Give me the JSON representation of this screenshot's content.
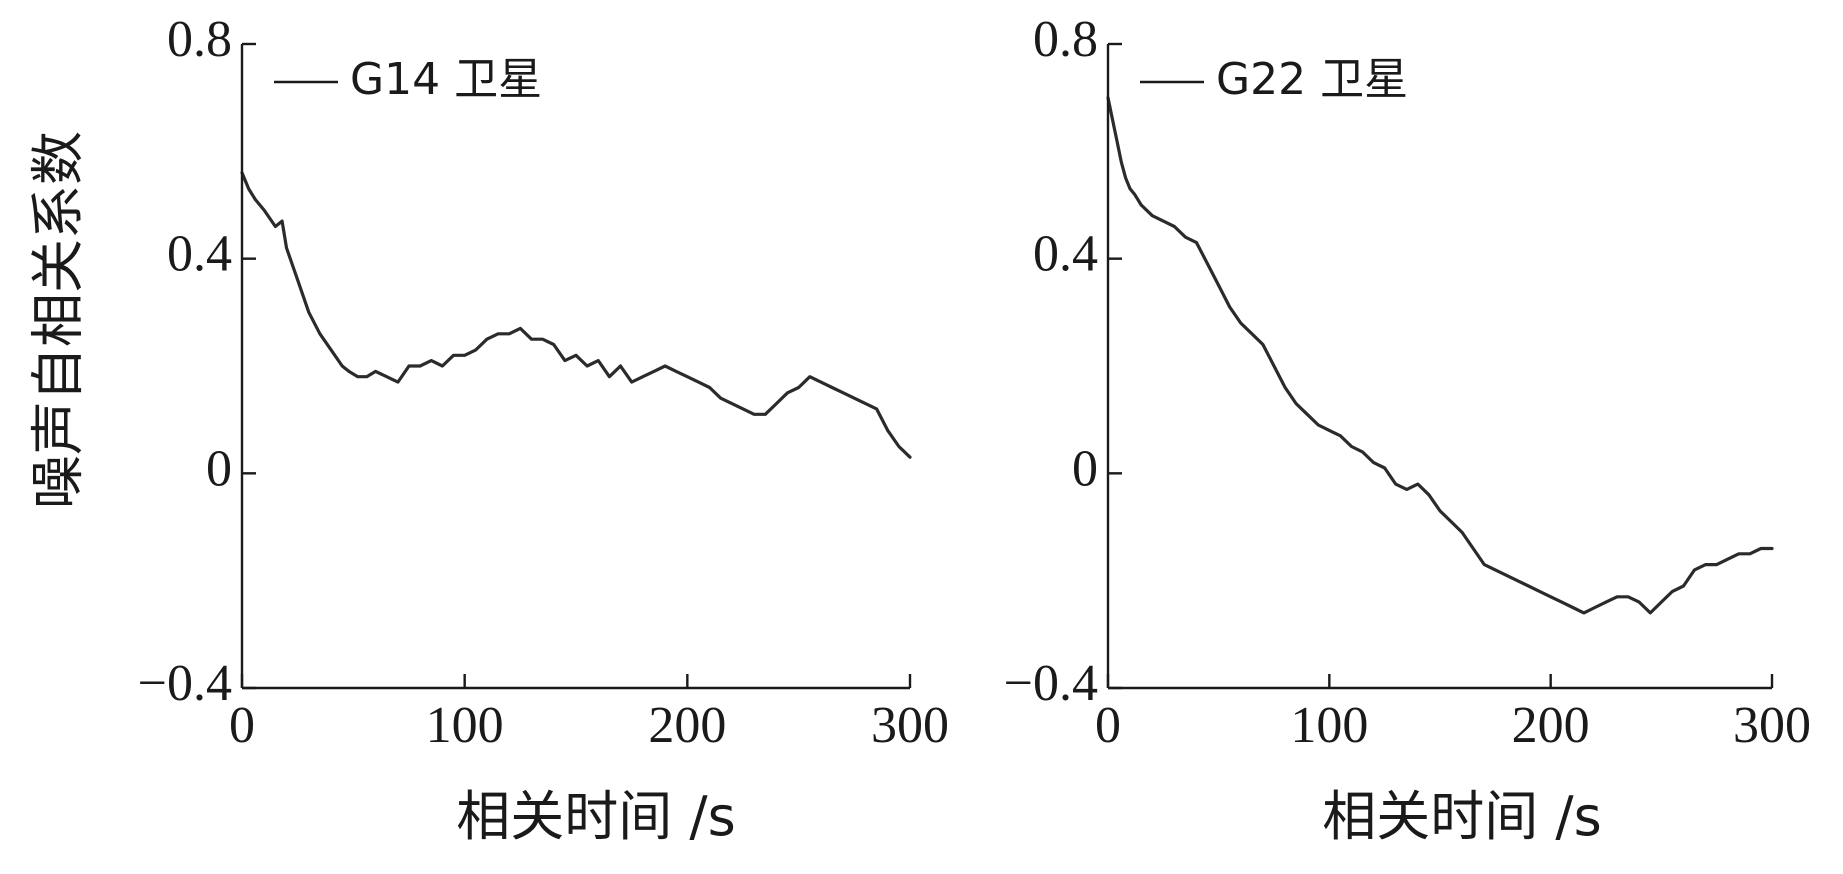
{
  "chart_data": [
    {
      "type": "line",
      "xlabel": "相关时间 /s",
      "ylabel": "噪声自相关系数",
      "xlim": [
        0,
        300
      ],
      "ylim": [
        -0.4,
        0.8
      ],
      "xticks": [
        {
          "value": 0,
          "label": "0"
        },
        {
          "value": 100,
          "label": "100"
        },
        {
          "value": 200,
          "label": "200"
        },
        {
          "value": 300,
          "label": "300"
        }
      ],
      "yticks": [
        {
          "value": -0.4,
          "label": "−0.4"
        },
        {
          "value": 0,
          "label": "0"
        },
        {
          "value": 0.4,
          "label": "0.4"
        },
        {
          "value": 0.8,
          "label": "0.8"
        }
      ],
      "grid": false,
      "legend_position": "top-left",
      "series": [
        {
          "name": "G14 卫星",
          "color": "#2b2b2b",
          "x": [
            0,
            3,
            6,
            10,
            15,
            18,
            20,
            25,
            30,
            35,
            40,
            45,
            48,
            52,
            56,
            60,
            65,
            70,
            75,
            80,
            85,
            90,
            95,
            100,
            105,
            110,
            115,
            120,
            125,
            130,
            135,
            140,
            145,
            150,
            155,
            160,
            165,
            170,
            175,
            180,
            185,
            190,
            195,
            200,
            205,
            210,
            215,
            220,
            225,
            230,
            235,
            240,
            245,
            250,
            255,
            260,
            265,
            270,
            275,
            280,
            285,
            290,
            295,
            300
          ],
          "y": [
            0.56,
            0.53,
            0.51,
            0.49,
            0.46,
            0.47,
            0.42,
            0.36,
            0.3,
            0.26,
            0.23,
            0.2,
            0.19,
            0.18,
            0.18,
            0.19,
            0.18,
            0.17,
            0.2,
            0.2,
            0.21,
            0.2,
            0.22,
            0.22,
            0.23,
            0.25,
            0.26,
            0.26,
            0.27,
            0.25,
            0.25,
            0.24,
            0.21,
            0.22,
            0.2,
            0.21,
            0.18,
            0.2,
            0.17,
            0.18,
            0.19,
            0.2,
            0.19,
            0.18,
            0.17,
            0.16,
            0.14,
            0.13,
            0.12,
            0.11,
            0.11,
            0.13,
            0.15,
            0.16,
            0.18,
            0.17,
            0.16,
            0.15,
            0.14,
            0.13,
            0.12,
            0.08,
            0.05,
            0.03
          ]
        }
      ]
    },
    {
      "type": "line",
      "xlabel": "相关时间 /s",
      "ylabel": "",
      "xlim": [
        0,
        300
      ],
      "ylim": [
        -0.4,
        0.8
      ],
      "xticks": [
        {
          "value": 0,
          "label": "0"
        },
        {
          "value": 100,
          "label": "100"
        },
        {
          "value": 200,
          "label": "200"
        },
        {
          "value": 300,
          "label": "300"
        }
      ],
      "yticks": [
        {
          "value": -0.4,
          "label": "−0.4"
        },
        {
          "value": 0,
          "label": "0"
        },
        {
          "value": 0.4,
          "label": "0.4"
        },
        {
          "value": 0.8,
          "label": "0.8"
        }
      ],
      "grid": false,
      "legend_position": "top-left",
      "series": [
        {
          "name": "G22 卫星",
          "color": "#2b2b2b",
          "x": [
            0,
            2,
            4,
            6,
            8,
            10,
            12,
            15,
            20,
            25,
            30,
            35,
            40,
            45,
            50,
            55,
            60,
            65,
            70,
            75,
            80,
            85,
            90,
            95,
            100,
            105,
            110,
            115,
            120,
            125,
            130,
            135,
            140,
            145,
            150,
            155,
            160,
            165,
            170,
            175,
            180,
            185,
            190,
            195,
            200,
            205,
            210,
            215,
            220,
            225,
            230,
            235,
            240,
            245,
            250,
            255,
            260,
            265,
            270,
            275,
            280,
            285,
            290,
            295,
            300
          ],
          "y": [
            0.7,
            0.66,
            0.62,
            0.58,
            0.55,
            0.53,
            0.52,
            0.5,
            0.48,
            0.47,
            0.46,
            0.44,
            0.43,
            0.39,
            0.35,
            0.31,
            0.28,
            0.26,
            0.24,
            0.2,
            0.16,
            0.13,
            0.11,
            0.09,
            0.08,
            0.07,
            0.05,
            0.04,
            0.02,
            0.01,
            -0.02,
            -0.03,
            -0.02,
            -0.04,
            -0.07,
            -0.09,
            -0.11,
            -0.14,
            -0.17,
            -0.18,
            -0.19,
            -0.2,
            -0.21,
            -0.22,
            -0.23,
            -0.24,
            -0.25,
            -0.26,
            -0.25,
            -0.24,
            -0.23,
            -0.23,
            -0.24,
            -0.26,
            -0.24,
            -0.22,
            -0.21,
            -0.18,
            -0.17,
            -0.17,
            -0.16,
            -0.15,
            -0.15,
            -0.14,
            -0.14
          ]
        }
      ]
    }
  ]
}
